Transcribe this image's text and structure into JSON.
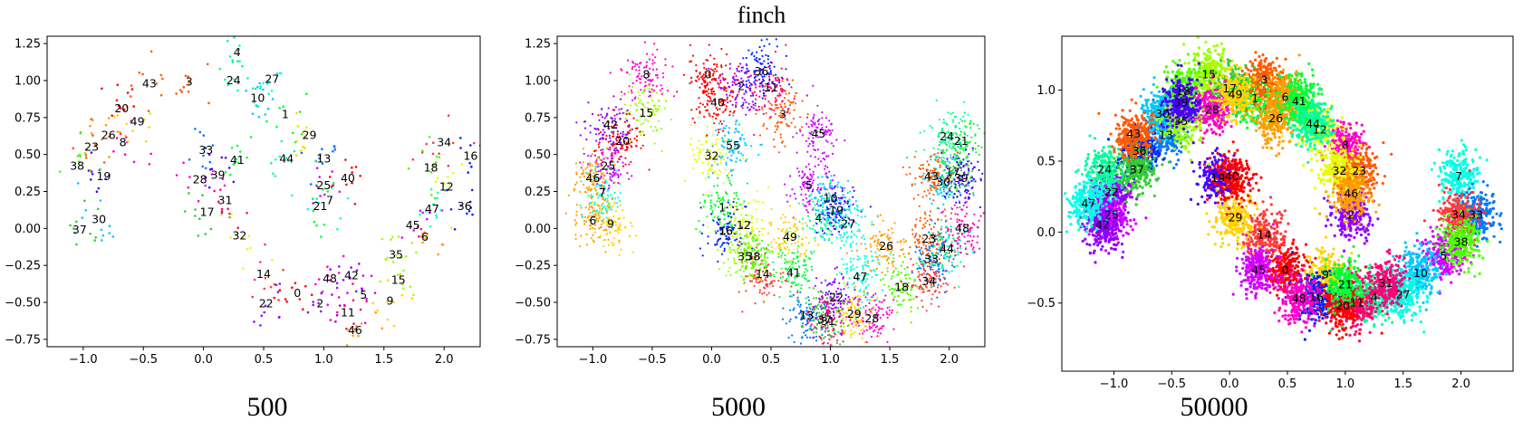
{
  "title": "finch",
  "chart_data": [
    {
      "type": "scatter",
      "xlabel": "500",
      "n_points": 500,
      "xlim": [
        -1.3,
        2.3
      ],
      "ylim": [
        -0.8,
        1.3
      ],
      "xticks": [
        -1.0,
        -0.5,
        0.0,
        0.5,
        1.0,
        1.5,
        2.0
      ],
      "yticks": [
        -0.75,
        -0.5,
        -0.25,
        0.0,
        0.25,
        0.5,
        0.75,
        1.0,
        1.25
      ],
      "xtick_labels": [
        "−1.0",
        "−0.5",
        "0.0",
        "0.5",
        "1.0",
        "1.5",
        "2.0"
      ],
      "ytick_labels": [
        "−0.75",
        "−0.50",
        "−0.25",
        "0.00",
        "0.25",
        "0.50",
        "0.75",
        "1.00",
        "1.25"
      ],
      "clusters": [
        {
          "id": "0",
          "x": 0.78,
          "y": -0.44
        },
        {
          "id": "1",
          "x": 0.68,
          "y": 0.77
        },
        {
          "id": "2",
          "x": 0.97,
          "y": -0.51
        },
        {
          "id": "3",
          "x": -0.12,
          "y": 0.99
        },
        {
          "id": "4",
          "x": 0.28,
          "y": 1.19
        },
        {
          "id": "5",
          "x": 1.33,
          "y": -0.45
        },
        {
          "id": "6",
          "x": 1.84,
          "y": -0.06
        },
        {
          "id": "7",
          "x": 1.05,
          "y": 0.19
        },
        {
          "id": "8",
          "x": -0.67,
          "y": 0.58
        },
        {
          "id": "9",
          "x": 1.55,
          "y": -0.49
        },
        {
          "id": "10",
          "x": 0.45,
          "y": 0.88
        },
        {
          "id": "11",
          "x": 1.2,
          "y": -0.57
        },
        {
          "id": "12",
          "x": 2.02,
          "y": 0.28
        },
        {
          "id": "13",
          "x": 1.0,
          "y": 0.47
        },
        {
          "id": "14",
          "x": 0.5,
          "y": -0.31
        },
        {
          "id": "15",
          "x": 1.62,
          "y": -0.35
        },
        {
          "id": "16",
          "x": 2.22,
          "y": 0.49
        },
        {
          "id": "17",
          "x": 0.03,
          "y": 0.11
        },
        {
          "id": "18",
          "x": 1.89,
          "y": 0.41
        },
        {
          "id": "19",
          "x": -0.83,
          "y": 0.35
        },
        {
          "id": "20",
          "x": -0.68,
          "y": 0.81
        },
        {
          "id": "21",
          "x": 0.97,
          "y": 0.15
        },
        {
          "id": "22",
          "x": 0.52,
          "y": -0.51
        },
        {
          "id": "23",
          "x": -0.93,
          "y": 0.55
        },
        {
          "id": "24",
          "x": 0.25,
          "y": 1.0
        },
        {
          "id": "25",
          "x": 1.0,
          "y": 0.29
        },
        {
          "id": "26",
          "x": -0.79,
          "y": 0.63
        },
        {
          "id": "27",
          "x": 0.57,
          "y": 1.01
        },
        {
          "id": "28",
          "x": -0.03,
          "y": 0.33
        },
        {
          "id": "29",
          "x": 0.88,
          "y": 0.63
        },
        {
          "id": "30",
          "x": -0.87,
          "y": 0.06
        },
        {
          "id": "31",
          "x": 0.18,
          "y": 0.19
        },
        {
          "id": "32",
          "x": 0.3,
          "y": -0.05
        },
        {
          "id": "33",
          "x": 0.02,
          "y": 0.53
        },
        {
          "id": "34",
          "x": 2.0,
          "y": 0.58
        },
        {
          "id": "35",
          "x": 1.6,
          "y": -0.18
        },
        {
          "id": "36",
          "x": 2.17,
          "y": 0.15
        },
        {
          "id": "37",
          "x": -1.03,
          "y": -0.01
        },
        {
          "id": "38",
          "x": -1.05,
          "y": 0.42
        },
        {
          "id": "39",
          "x": 0.12,
          "y": 0.36
        },
        {
          "id": "40",
          "x": 1.2,
          "y": 0.34
        },
        {
          "id": "41",
          "x": 0.28,
          "y": 0.46
        },
        {
          "id": "42",
          "x": 1.23,
          "y": -0.32
        },
        {
          "id": "43",
          "x": -0.45,
          "y": 0.98
        },
        {
          "id": "44",
          "x": 0.69,
          "y": 0.47
        },
        {
          "id": "45",
          "x": 1.74,
          "y": 0.02
        },
        {
          "id": "46",
          "x": 1.26,
          "y": -0.69
        },
        {
          "id": "47",
          "x": 1.9,
          "y": 0.13
        },
        {
          "id": "48",
          "x": 1.05,
          "y": -0.34
        },
        {
          "id": "49",
          "x": -0.55,
          "y": 0.72
        }
      ]
    },
    {
      "type": "scatter",
      "xlabel": "5000",
      "n_points": 5000,
      "xlim": [
        -1.3,
        2.3
      ],
      "ylim": [
        -0.8,
        1.3
      ],
      "xticks": [
        -1.0,
        -0.5,
        0.0,
        0.5,
        1.0,
        1.5,
        2.0
      ],
      "yticks": [
        -0.75,
        -0.5,
        -0.25,
        0.0,
        0.25,
        0.5,
        0.75,
        1.0,
        1.25
      ],
      "xtick_labels": [
        "−1.0",
        "−0.5",
        "0.0",
        "0.5",
        "1.0",
        "1.5",
        "2.0"
      ],
      "ytick_labels": [
        "−0.75",
        "−0.50",
        "−0.25",
        "0.00",
        "0.25",
        "0.50",
        "0.75",
        "1.00",
        "1.25"
      ],
      "clusters": [
        {
          "id": "0",
          "x": -0.03,
          "y": 1.04
        },
        {
          "id": "1",
          "x": 0.09,
          "y": 0.14
        },
        {
          "id": "2",
          "x": 0.25,
          "y": 0.96
        },
        {
          "id": "3",
          "x": 0.6,
          "y": 0.77
        },
        {
          "id": "4",
          "x": 0.9,
          "y": 0.07
        },
        {
          "id": "5",
          "x": 0.82,
          "y": 0.29
        },
        {
          "id": "6",
          "x": -1.0,
          "y": 0.05
        },
        {
          "id": "7",
          "x": -0.92,
          "y": 0.24
        },
        {
          "id": "8",
          "x": -0.55,
          "y": 1.04
        },
        {
          "id": "9",
          "x": -0.85,
          "y": 0.03
        },
        {
          "id": "10",
          "x": 1.0,
          "y": 0.2
        },
        {
          "id": "11",
          "x": 0.5,
          "y": 0.95
        },
        {
          "id": "12",
          "x": 0.27,
          "y": 0.02
        },
        {
          "id": "13",
          "x": 0.8,
          "y": -0.59
        },
        {
          "id": "14",
          "x": 0.43,
          "y": -0.31
        },
        {
          "id": "15",
          "x": -0.55,
          "y": 0.78
        },
        {
          "id": "16",
          "x": 0.12,
          "y": -0.02
        },
        {
          "id": "17",
          "x": 2.03,
          "y": 0.38
        },
        {
          "id": "18",
          "x": 1.6,
          "y": -0.4
        },
        {
          "id": "19",
          "x": 1.05,
          "y": 0.12
        },
        {
          "id": "20",
          "x": -0.75,
          "y": 0.59
        },
        {
          "id": "21",
          "x": 2.1,
          "y": 0.59
        },
        {
          "id": "22",
          "x": 1.05,
          "y": -0.47
        },
        {
          "id": "23",
          "x": 1.83,
          "y": -0.07
        },
        {
          "id": "24",
          "x": 1.98,
          "y": 0.62
        },
        {
          "id": "25",
          "x": -0.87,
          "y": 0.42
        },
        {
          "id": "26",
          "x": 1.47,
          "y": -0.12
        },
        {
          "id": "27",
          "x": 1.15,
          "y": 0.03
        },
        {
          "id": "28",
          "x": 1.35,
          "y": -0.61
        },
        {
          "id": "29",
          "x": 1.2,
          "y": -0.58
        },
        {
          "id": "30",
          "x": 1.95,
          "y": 0.31
        },
        {
          "id": "31",
          "x": 0.98,
          "y": -0.63
        },
        {
          "id": "32",
          "x": 0.0,
          "y": 0.49
        },
        {
          "id": "33",
          "x": 1.85,
          "y": -0.21
        },
        {
          "id": "34",
          "x": 1.83,
          "y": -0.36
        },
        {
          "id": "35",
          "x": 0.28,
          "y": -0.19
        },
        {
          "id": "36",
          "x": 0.42,
          "y": 1.06
        },
        {
          "id": "37",
          "x": 0.95,
          "y": -0.62
        },
        {
          "id": "38",
          "x": 0.35,
          "y": -0.19
        },
        {
          "id": "39",
          "x": 2.1,
          "y": 0.34
        },
        {
          "id": "40",
          "x": 0.05,
          "y": 0.85
        },
        {
          "id": "41",
          "x": 0.69,
          "y": -0.3
        },
        {
          "id": "42",
          "x": -0.85,
          "y": 0.7
        },
        {
          "id": "43",
          "x": 1.85,
          "y": 0.35
        },
        {
          "id": "44",
          "x": 1.98,
          "y": -0.14
        },
        {
          "id": "45",
          "x": 0.9,
          "y": 0.64
        },
        {
          "id": "46",
          "x": -1.0,
          "y": 0.34
        },
        {
          "id": "47",
          "x": 1.25,
          "y": -0.33
        },
        {
          "id": "48",
          "x": 2.11,
          "y": 0.0
        },
        {
          "id": "49",
          "x": 0.66,
          "y": -0.06
        },
        {
          "id": "55",
          "x": 0.18,
          "y": 0.56
        }
      ]
    },
    {
      "type": "scatter",
      "xlabel": "50000",
      "n_points": 50000,
      "xlim": [
        -1.45,
        2.45
      ],
      "ylim": [
        -0.98,
        1.38
      ],
      "xticks": [
        -1.0,
        -0.5,
        0.0,
        0.5,
        1.0,
        1.5,
        2.0
      ],
      "yticks": [
        -0.5,
        0.0,
        0.5,
        1.0
      ],
      "xtick_labels": [
        "−1.0",
        "−0.5",
        "0.0",
        "0.5",
        "1.0",
        "1.5",
        "2.0"
      ],
      "ytick_labels": [
        "−0.5",
        "0.0",
        "0.5",
        "1.0"
      ],
      "clusters": [
        {
          "id": "0",
          "x": 0.48,
          "y": -0.27
        },
        {
          "id": "1",
          "x": 0.22,
          "y": 0.94
        },
        {
          "id": "2",
          "x": 1.05,
          "y": 0.12
        },
        {
          "id": "3",
          "x": 0.3,
          "y": 1.07
        },
        {
          "id": "4",
          "x": 1.25,
          "y": -0.46
        },
        {
          "id": "5",
          "x": 1.85,
          "y": -0.17
        },
        {
          "id": "6",
          "x": 0.48,
          "y": 0.95
        },
        {
          "id": "7",
          "x": 1.98,
          "y": 0.39
        },
        {
          "id": "8",
          "x": 1.0,
          "y": 0.61
        },
        {
          "id": "9",
          "x": 0.83,
          "y": -0.3
        },
        {
          "id": "10",
          "x": 1.65,
          "y": -0.29
        },
        {
          "id": "11",
          "x": 1.1,
          "y": -0.5
        },
        {
          "id": "12",
          "x": 0.78,
          "y": 0.72
        },
        {
          "id": "13",
          "x": -0.55,
          "y": 0.68
        },
        {
          "id": "14",
          "x": 0.3,
          "y": -0.02
        },
        {
          "id": "15",
          "x": -0.18,
          "y": 1.11
        },
        {
          "id": "16",
          "x": 0.75,
          "y": -0.46
        },
        {
          "id": "17",
          "x": 0.0,
          "y": 1.01
        },
        {
          "id": "18",
          "x": -0.4,
          "y": 0.99
        },
        {
          "id": "19",
          "x": -0.1,
          "y": 0.38
        },
        {
          "id": "20",
          "x": 0.98,
          "y": -0.52
        },
        {
          "id": "21",
          "x": 1.0,
          "y": -0.37
        },
        {
          "id": "22",
          "x": -1.02,
          "y": 0.28
        },
        {
          "id": "23",
          "x": 1.12,
          "y": 0.43
        },
        {
          "id": "24",
          "x": -1.08,
          "y": 0.44
        },
        {
          "id": "25",
          "x": -1.02,
          "y": 0.12
        },
        {
          "id": "26",
          "x": 0.4,
          "y": 0.8
        },
        {
          "id": "27",
          "x": 1.5,
          "y": -0.44
        },
        {
          "id": "28",
          "x": -0.15,
          "y": 0.86
        },
        {
          "id": "29",
          "x": 0.05,
          "y": 0.1
        },
        {
          "id": "30",
          "x": -0.58,
          "y": 0.83
        },
        {
          "id": "31",
          "x": 1.35,
          "y": -0.36
        },
        {
          "id": "32",
          "x": 0.95,
          "y": 0.43
        },
        {
          "id": "33",
          "x": 2.13,
          "y": 0.12
        },
        {
          "id": "34",
          "x": 1.98,
          "y": 0.12
        },
        {
          "id": "35",
          "x": -0.42,
          "y": 0.78
        },
        {
          "id": "36",
          "x": -0.78,
          "y": 0.57
        },
        {
          "id": "37",
          "x": -0.8,
          "y": 0.44
        },
        {
          "id": "38",
          "x": 2.0,
          "y": -0.07
        },
        {
          "id": "39",
          "x": -0.42,
          "y": 0.91
        },
        {
          "id": "40",
          "x": 0.02,
          "y": 0.39
        },
        {
          "id": "41",
          "x": 0.6,
          "y": 0.92
        },
        {
          "id": "42",
          "x": -1.1,
          "y": 0.05
        },
        {
          "id": "43",
          "x": -0.83,
          "y": 0.69
        },
        {
          "id": "44",
          "x": 0.72,
          "y": 0.76
        },
        {
          "id": "45",
          "x": 0.25,
          "y": -0.27
        },
        {
          "id": "46",
          "x": 1.05,
          "y": 0.27
        },
        {
          "id": "47",
          "x": -1.22,
          "y": 0.2
        },
        {
          "id": "48",
          "x": 0.6,
          "y": -0.47
        },
        {
          "id": "49",
          "x": 0.05,
          "y": 0.97
        }
      ]
    }
  ]
}
